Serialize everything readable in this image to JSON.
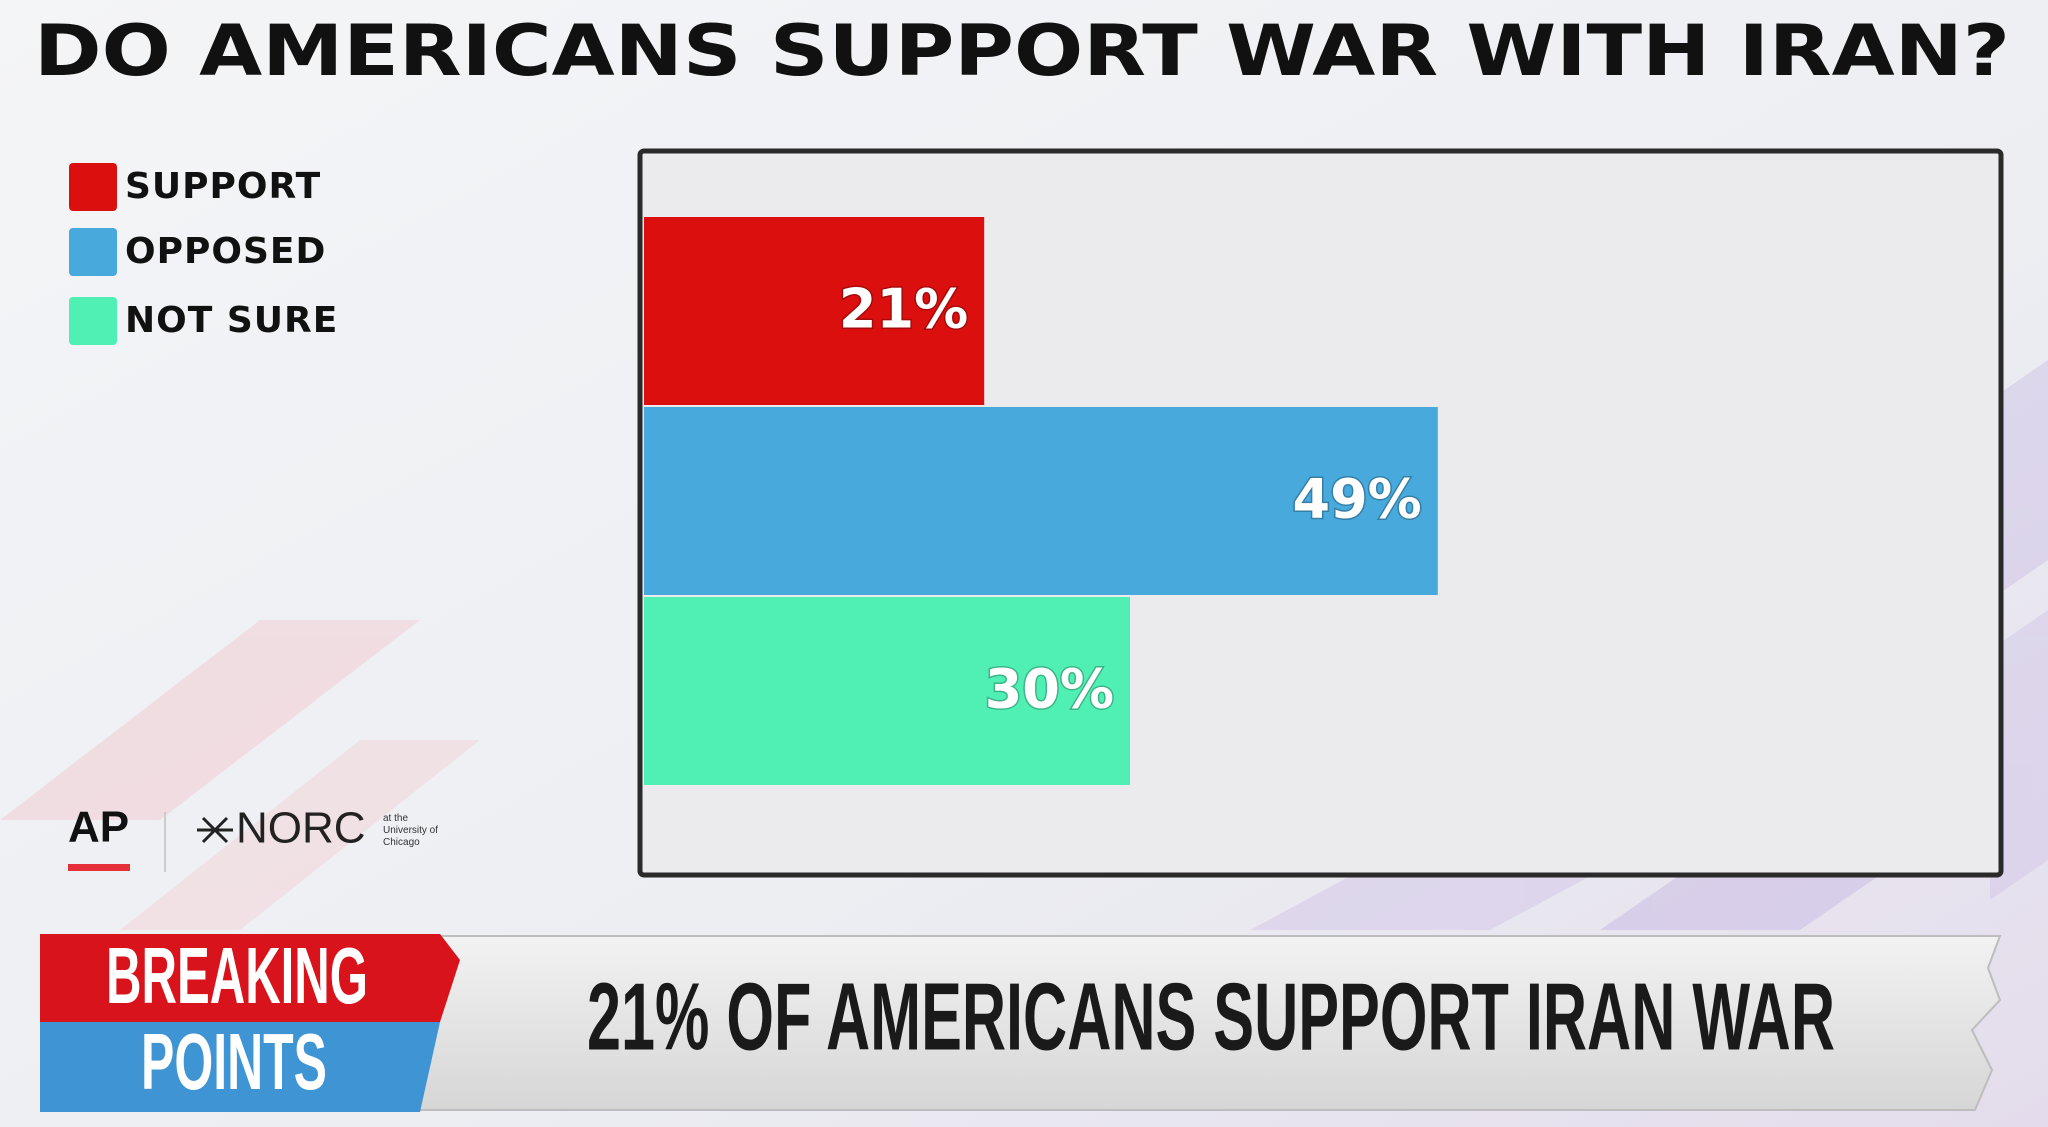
{
  "chart_data": {
    "type": "bar",
    "orientation": "horizontal",
    "title": "DO AMERICANS SUPPORT WAR WITH IRAN?",
    "legend_position": "left",
    "series": [
      {
        "name": "SUPPORT",
        "color": "#dc0f0f",
        "values": [
          21
        ],
        "value_labels": [
          "21%"
        ]
      },
      {
        "name": "OPPOSED",
        "color": "#47a9dc",
        "values": [
          49
        ],
        "value_labels": [
          "49%"
        ]
      },
      {
        "name": "NOT SURE",
        "color": "#50f0b4",
        "values": [
          30
        ],
        "value_labels": [
          "30%"
        ]
      }
    ]
  },
  "source": {
    "logo_ap": "AP",
    "logo_norc": "NORC",
    "norc_affiliation": [
      "at the",
      "University of",
      "Chicago"
    ]
  },
  "banner": {
    "show_top": "BREAKING",
    "show_bottom": "POINTS",
    "headline": "21% OF AMERICANS SUPPORT IRAN WAR"
  }
}
